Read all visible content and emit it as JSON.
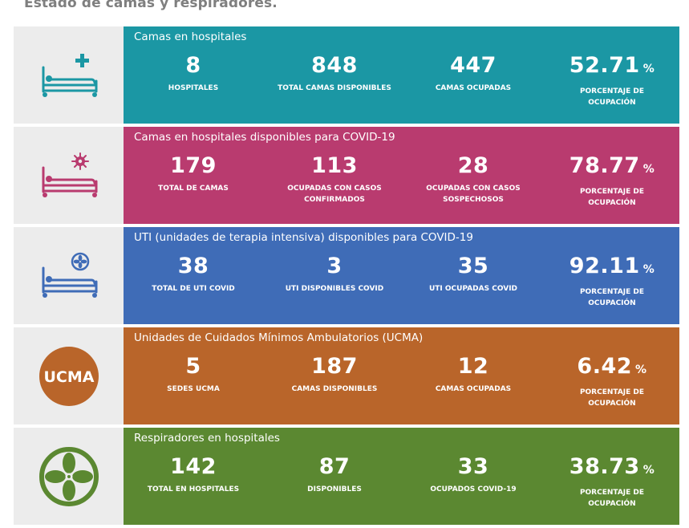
{
  "header": {
    "title": "Estado de camas y respiradores."
  },
  "colors": {
    "hospital": "#1b97a4",
    "covid": "#b93b6f",
    "uti": "#3f6cb7",
    "ucma": "#b9652a",
    "respirators": "#5b8831",
    "icon_bg": "#ececec",
    "title_gray": "#7f7f7f"
  },
  "sections": [
    {
      "title": "Camas en hospitales",
      "icon": "hospital-bed-plus-icon",
      "stats": [
        {
          "value": "8",
          "label": "HOSPITALES"
        },
        {
          "value": "848",
          "label": "TOTAL CAMAS DISPONIBLES"
        },
        {
          "value": "447",
          "label": "CAMAS OCUPADAS"
        },
        {
          "value": "52.71",
          "unit": "%",
          "label": "PORCENTAJE DE\nOCUPACIÓN"
        }
      ]
    },
    {
      "title": "Camas en hospitales disponibles para COVID-19",
      "icon": "hospital-bed-virus-icon",
      "stats": [
        {
          "value": "179",
          "label": "TOTAL DE CAMAS"
        },
        {
          "value": "113",
          "label": "OCUPADAS CON CASOS\nCONFIRMADOS"
        },
        {
          "value": "28",
          "label": "OCUPADAS CON CASOS\nSOSPECHOSOS"
        },
        {
          "value": "78.77",
          "unit": "%",
          "label": "PORCENTAJE DE\nOCUPACIÓN"
        }
      ]
    },
    {
      "title": "UTI (unidades de terapia intensiva) disponibles para COVID-19",
      "icon": "hospital-bed-fan-icon",
      "stats": [
        {
          "value": "38",
          "label": "TOTAL DE UTI COVID"
        },
        {
          "value": "3",
          "label": "UTI DISPONIBLES COVID"
        },
        {
          "value": "35",
          "label": "UTI OCUPADAS COVID"
        },
        {
          "value": "92.11",
          "unit": "%",
          "label": "PORCENTAJE DE\nOCUPACIÓN"
        }
      ]
    },
    {
      "title": "Unidades de Cuidados Mínimos Ambulatorios (UCMA)",
      "icon": "ucma-badge-icon",
      "icon_text": "UCMA",
      "stats": [
        {
          "value": "5",
          "label": "SEDES UCMA"
        },
        {
          "value": "187",
          "label": "CAMAS DISPONIBLES"
        },
        {
          "value": "12",
          "label": "CAMAS OCUPADAS"
        },
        {
          "value": "6.42",
          "unit": "%",
          "label": "PORCENTAJE DE\nOCUPACIÓN"
        }
      ]
    },
    {
      "title": "Respiradores en hospitales",
      "icon": "respirator-fan-icon",
      "stats": [
        {
          "value": "142",
          "label": "TOTAL EN HOSPITALES"
        },
        {
          "value": "87",
          "label": "DISPONIBLES"
        },
        {
          "value": "33",
          "label": "OCUPADOS COVID-19"
        },
        {
          "value": "38.73",
          "unit": "%",
          "label": "PORCENTAJE DE\nOCUPACIÓN"
        }
      ]
    }
  ]
}
